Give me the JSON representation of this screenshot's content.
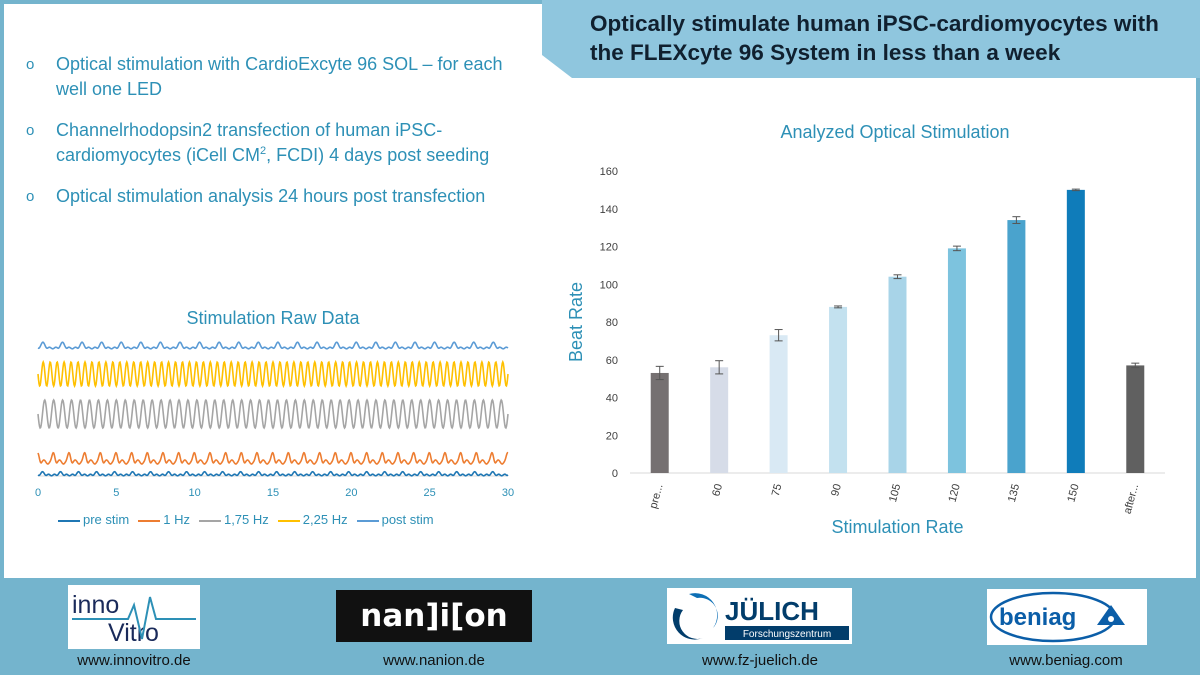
{
  "header": {
    "title": "Optically stimulate human iPSC-cardiomyocytes with\nthe FLEXcyte 96 System in less than a week"
  },
  "bullets": {
    "b1": "Optical stimulation with CardioExcyte 96 SOL – for each well one LED",
    "b2_pre": "Channelrhodopsin2 transfection of human iPSC-cardiomyocytes (iCell CM",
    "b2_sup": "2",
    "b2_post": ", FCDI) 4 days post seeding",
    "b3": "Optical stimulation analysis 24 hours post transfection",
    "marker": "o"
  },
  "chart_data": [
    {
      "type": "line",
      "title": "Stimulation Raw Data",
      "xlabel": "",
      "ylabel": "",
      "x_ticks": [
        0,
        5,
        10,
        15,
        20,
        25,
        30
      ],
      "xlim": [
        0,
        30
      ],
      "series": [
        {
          "name": "pre stim",
          "color": "#1f77b4",
          "frequency_hz": 0.87,
          "shape": "low-amplitude wave"
        },
        {
          "name": "1 Hz",
          "color": "#ed7d31",
          "frequency_hz": 1.0,
          "shape": "spiky beats"
        },
        {
          "name": "1,75 Hz",
          "color": "#a5a5a5",
          "frequency_hz": 1.75,
          "shape": "sinusoidal"
        },
        {
          "name": "2,25 Hz",
          "color": "#ffc000",
          "frequency_hz": 2.25,
          "shape": "sinusoidal"
        },
        {
          "name": "post stim",
          "color": "#5b9bd5",
          "frequency_hz": 0.8,
          "shape": "low-amplitude wave"
        }
      ],
      "legend_position": "bottom",
      "grid": false
    },
    {
      "type": "bar",
      "title": "Analyzed Optical Stimulation",
      "xlabel": "Stimulation Rate",
      "ylabel": "Beat Rate",
      "categories": [
        "pre...",
        "60",
        "75",
        "90",
        "105",
        "120",
        "135",
        "150",
        "after..."
      ],
      "values": [
        53,
        56,
        73,
        88,
        104,
        119,
        134,
        150,
        57
      ],
      "errors": [
        3.5,
        3.5,
        3,
        0.5,
        1,
        1.2,
        1.8,
        0.4,
        1.2
      ],
      "colors": [
        "#757071",
        "#d6dce8",
        "#d9e9f4",
        "#c3e1ef",
        "#a8d4e8",
        "#7dc3de",
        "#4aa3cd",
        "#0f7cba",
        "#606060"
      ],
      "ylim": [
        0,
        160
      ],
      "y_ticks": [
        0,
        20,
        40,
        60,
        80,
        100,
        120,
        140,
        160
      ],
      "grid": false
    }
  ],
  "footer": {
    "logos": [
      {
        "name": "innovitro",
        "text_a": "inno",
        "text_b": "Vitro",
        "url": "www.innovitro.de"
      },
      {
        "name": "nanion",
        "text": "nan]i[on",
        "url": "www.nanion.de"
      },
      {
        "name": "juelich",
        "text": "JÜLICH",
        "sub": "Forschungszentrum",
        "url": "www.fz-juelich.de"
      },
      {
        "name": "beniag",
        "text": "beniag",
        "url": "www.beniag.com"
      }
    ]
  },
  "colors": {
    "accent": "#2d90b6",
    "background": "#74b4cd",
    "title_box": "#8fc6de"
  }
}
